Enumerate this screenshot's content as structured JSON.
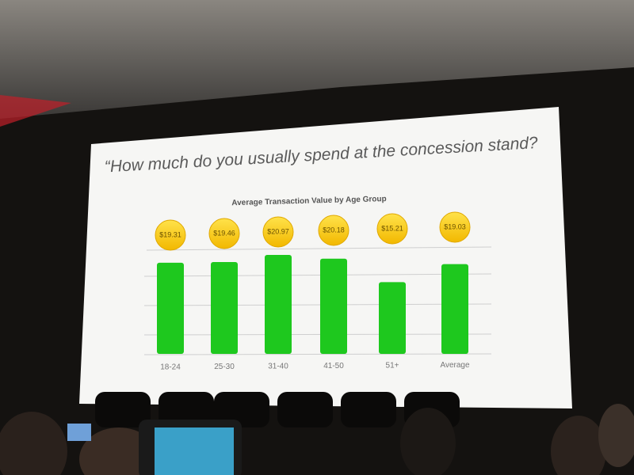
{
  "chart_data": {
    "type": "bar",
    "title": "“How much do you usually spend at the concession stand?",
    "subtitle": "Average Transaction Value by Age Group",
    "categories": [
      "18-24",
      "25-30",
      "31-40",
      "41-50",
      "51+",
      "Average"
    ],
    "values": [
      19.31,
      19.46,
      20.97,
      20.18,
      15.21,
      19.03
    ],
    "value_labels": [
      "$19.31",
      "$19.46",
      "$20.97",
      "$20.18",
      "$15.21",
      "$19.03"
    ],
    "color": "#1ec81e",
    "ylim": [
      0,
      25
    ]
  }
}
